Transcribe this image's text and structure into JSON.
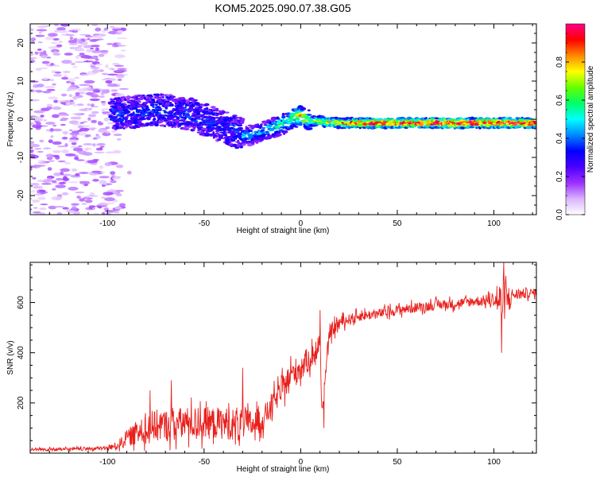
{
  "title": "KOM5.2025.090.07.38.G05",
  "chart_data": [
    {
      "type": "heatmap",
      "title": "KOM5.2025.090.07.38.G05",
      "xlabel": "Height of straight line (km)",
      "ylabel": "Frequency (Hz)",
      "xlim": [
        -140,
        122
      ],
      "ylim": [
        -25,
        25
      ],
      "xticks": [
        -100,
        -50,
        0,
        50,
        100
      ],
      "yticks": [
        -20,
        -10,
        0,
        10,
        20
      ],
      "xtick_labels": [
        "-100",
        "-50",
        "0",
        "50",
        "100"
      ],
      "ytick_labels": [
        "-20",
        "-10",
        "0",
        "10",
        "20"
      ],
      "colorbar": {
        "label": "Normalized spectral amplitude",
        "range": [
          0,
          1
        ],
        "ticks": [
          0.0,
          0.2,
          0.4,
          0.6,
          0.8
        ],
        "tick_labels": [
          "0.0",
          "0.2",
          "0.4",
          "0.6",
          "0.8"
        ],
        "colormap": [
          "#ffffff",
          "#d9b3ff",
          "#9b30ff",
          "#4b00ff",
          "#0000ff",
          "#0088ff",
          "#00ffff",
          "#00ff66",
          "#66ff00",
          "#ffff00",
          "#ff8800",
          "#ff0000",
          "#ff0088"
        ]
      },
      "ridge": {
        "x": [
          -95,
          -85,
          -75,
          -65,
          -55,
          -45,
          -35,
          -28,
          -22,
          -15,
          -8,
          -3,
          0,
          5,
          10,
          20,
          30,
          40,
          50,
          60,
          70,
          80,
          90,
          100,
          110,
          120
        ],
        "y": [
          1.5,
          2.0,
          2.5,
          2.0,
          1.0,
          -1.0,
          -3.0,
          -4.5,
          -3.5,
          -2.5,
          -1.0,
          0.5,
          1.0,
          -0.5,
          -0.5,
          -1.0,
          -1.0,
          -1.0,
          -1.0,
          -1.0,
          -1.0,
          -1.0,
          -1.0,
          -1.0,
          -1.0,
          -1.0
        ],
        "amplitude": [
          0.25,
          0.3,
          0.3,
          0.3,
          0.3,
          0.3,
          0.35,
          0.4,
          0.4,
          0.45,
          0.5,
          0.6,
          0.7,
          0.55,
          0.65,
          0.75,
          0.8,
          0.85,
          0.85,
          0.85,
          0.9,
          0.9,
          0.9,
          0.85,
          0.9,
          0.85
        ]
      }
    },
    {
      "type": "line",
      "xlabel": "Height of straight line (km)",
      "ylabel": "SNR (v/v)",
      "xlim": [
        -140,
        122
      ],
      "ylim": [
        0,
        760
      ],
      "xticks": [
        -100,
        -50,
        0,
        50,
        100
      ],
      "yticks": [
        200,
        400,
        600
      ],
      "xtick_labels": [
        "-100",
        "-50",
        "0",
        "50",
        "100"
      ],
      "ytick_labels": [
        "200",
        "400",
        "600"
      ],
      "series_color": "#e8201c",
      "envelope": {
        "x": [
          -140,
          -120,
          -100,
          -95,
          -90,
          -85,
          -80,
          -75,
          -70,
          -60,
          -50,
          -40,
          -30,
          -20,
          -10,
          -5,
          0,
          5,
          10,
          11,
          15,
          20,
          30,
          40,
          50,
          60,
          70,
          80,
          90,
          100,
          104,
          110,
          122
        ],
        "mean": [
          15,
          15,
          20,
          30,
          60,
          80,
          100,
          110,
          110,
          120,
          120,
          120,
          110,
          130,
          250,
          310,
          340,
          380,
          420,
          160,
          480,
          520,
          545,
          555,
          570,
          580,
          590,
          595,
          605,
          610,
          600,
          630,
          640
        ],
        "spread": [
          8,
          8,
          10,
          20,
          40,
          60,
          80,
          80,
          80,
          80,
          80,
          80,
          80,
          60,
          60,
          70,
          70,
          60,
          50,
          20,
          40,
          30,
          25,
          25,
          25,
          25,
          25,
          25,
          25,
          30,
          120,
          30,
          20
        ]
      },
      "peaks": [
        {
          "x": -78,
          "y": 250
        },
        {
          "x": -67,
          "y": 290
        },
        {
          "x": -30,
          "y": 340
        },
        {
          "x": 10,
          "y": 570
        },
        {
          "x": 12,
          "y": 100
        },
        {
          "x": 104,
          "y": 400
        },
        {
          "x": 105,
          "y": 760
        }
      ]
    }
  ]
}
